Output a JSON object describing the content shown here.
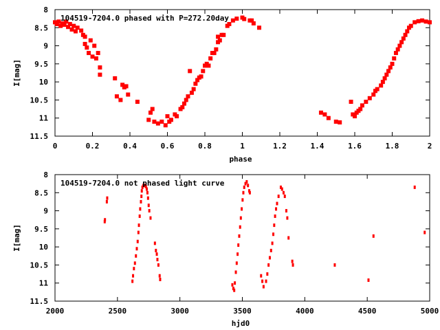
{
  "colors": {
    "points": "#ff0000",
    "axes": "#000000"
  },
  "chart_data": [
    {
      "type": "scatter",
      "title": "104519-7204.0 phased with P=272.20day",
      "xlabel": "phase",
      "ylabel": "I[mag]",
      "xlim": [
        0,
        2
      ],
      "ylim": [
        11.5,
        8
      ],
      "y_inverted": true,
      "xticks": [
        "0",
        "0.2",
        "0.4",
        "0.6",
        "0.8",
        "1",
        "1.2",
        "1.4",
        "1.6",
        "1.8",
        "2"
      ],
      "yticks": [
        "8",
        "8.5",
        "9",
        "9.5",
        "10",
        "10.5",
        "11",
        "11.5"
      ],
      "points": [
        [
          0.0,
          8.35
        ],
        [
          0.01,
          8.4
        ],
        [
          0.02,
          8.33
        ],
        [
          0.03,
          8.45
        ],
        [
          0.04,
          8.38
        ],
        [
          0.05,
          8.42
        ],
        [
          0.06,
          8.33
        ],
        [
          0.07,
          8.48
        ],
        [
          0.08,
          8.4
        ],
        [
          0.09,
          8.55
        ],
        [
          0.1,
          8.45
        ],
        [
          0.11,
          8.6
        ],
        [
          0.12,
          8.5
        ],
        [
          0.14,
          8.58
        ],
        [
          0.15,
          8.7
        ],
        [
          0.16,
          8.75
        ],
        [
          0.16,
          8.95
        ],
        [
          0.17,
          9.05
        ],
        [
          0.18,
          9.2
        ],
        [
          0.19,
          8.85
        ],
        [
          0.2,
          9.3
        ],
        [
          0.21,
          9.0
        ],
        [
          0.22,
          9.35
        ],
        [
          0.23,
          9.2
        ],
        [
          0.24,
          9.6
        ],
        [
          0.24,
          9.8
        ],
        [
          0.32,
          9.9
        ],
        [
          0.33,
          10.4
        ],
        [
          0.35,
          10.5
        ],
        [
          0.36,
          10.08
        ],
        [
          0.37,
          10.15
        ],
        [
          0.38,
          10.12
        ],
        [
          0.39,
          10.35
        ],
        [
          0.44,
          10.55
        ],
        [
          0.5,
          11.05
        ],
        [
          0.51,
          10.85
        ],
        [
          0.52,
          10.75
        ],
        [
          0.53,
          11.1
        ],
        [
          0.55,
          11.15
        ],
        [
          0.57,
          11.1
        ],
        [
          0.59,
          11.2
        ],
        [
          0.6,
          10.95
        ],
        [
          0.61,
          11.1
        ],
        [
          0.62,
          11.05
        ],
        [
          0.64,
          10.9
        ],
        [
          0.65,
          10.95
        ],
        [
          0.67,
          10.75
        ],
        [
          0.68,
          10.7
        ],
        [
          0.69,
          10.6
        ],
        [
          0.7,
          10.5
        ],
        [
          0.71,
          10.4
        ],
        [
          0.72,
          9.7
        ],
        [
          0.73,
          10.3
        ],
        [
          0.74,
          10.2
        ],
        [
          0.75,
          10.05
        ],
        [
          0.76,
          9.95
        ],
        [
          0.77,
          9.88
        ],
        [
          0.78,
          9.85
        ],
        [
          0.79,
          9.7
        ],
        [
          0.8,
          9.55
        ],
        [
          0.81,
          9.5
        ],
        [
          0.82,
          9.55
        ],
        [
          0.83,
          9.35
        ],
        [
          0.84,
          9.2
        ],
        [
          0.85,
          9.2
        ],
        [
          0.86,
          9.1
        ],
        [
          0.87,
          8.9
        ],
        [
          0.87,
          8.75
        ],
        [
          0.88,
          8.85
        ],
        [
          0.89,
          8.7
        ],
        [
          0.9,
          8.7
        ],
        [
          0.92,
          8.45
        ],
        [
          0.93,
          8.4
        ],
        [
          0.95,
          8.3
        ],
        [
          0.97,
          8.25
        ],
        [
          1.0,
          8.22
        ],
        [
          1.01,
          8.26
        ],
        [
          1.04,
          8.3
        ],
        [
          1.05,
          8.3
        ],
        [
          1.06,
          8.38
        ],
        [
          1.09,
          8.5
        ],
        [
          1.42,
          10.85
        ],
        [
          1.44,
          10.9
        ],
        [
          1.46,
          11.0
        ],
        [
          1.5,
          11.1
        ],
        [
          1.52,
          11.12
        ],
        [
          1.58,
          10.55
        ],
        [
          1.59,
          10.9
        ],
        [
          1.6,
          10.95
        ],
        [
          1.61,
          10.85
        ],
        [
          1.62,
          10.8
        ],
        [
          1.63,
          10.75
        ],
        [
          1.64,
          10.65
        ],
        [
          1.66,
          10.55
        ],
        [
          1.68,
          10.45
        ],
        [
          1.7,
          10.35
        ],
        [
          1.71,
          10.25
        ],
        [
          1.72,
          10.2
        ],
        [
          1.74,
          10.1
        ],
        [
          1.75,
          10.0
        ],
        [
          1.76,
          9.9
        ],
        [
          1.77,
          9.8
        ],
        [
          1.78,
          9.7
        ],
        [
          1.79,
          9.6
        ],
        [
          1.8,
          9.5
        ],
        [
          1.81,
          9.35
        ],
        [
          1.82,
          9.2
        ],
        [
          1.83,
          9.1
        ],
        [
          1.84,
          9.0
        ],
        [
          1.85,
          8.9
        ],
        [
          1.86,
          8.8
        ],
        [
          1.87,
          8.7
        ],
        [
          1.88,
          8.6
        ],
        [
          1.89,
          8.5
        ],
        [
          1.9,
          8.45
        ],
        [
          1.92,
          8.35
        ],
        [
          1.94,
          8.32
        ],
        [
          1.96,
          8.3
        ],
        [
          1.98,
          8.33
        ],
        [
          2.0,
          8.35
        ]
      ]
    },
    {
      "type": "scatter",
      "title": "104519-7204.0 not phased light curve",
      "xlabel": "hjd0",
      "ylabel": "I[mag]",
      "xlim": [
        2000,
        5000
      ],
      "ylim": [
        11.5,
        8
      ],
      "y_inverted": true,
      "xticks": [
        "2000",
        "2500",
        "3000",
        "3500",
        "4000",
        "4500",
        "5000"
      ],
      "yticks": [
        "8",
        "8.5",
        "9",
        "9.5",
        "10",
        "10.5",
        "11",
        "11.5"
      ],
      "points": [
        [
          2398,
          9.3
        ],
        [
          2400,
          9.25
        ],
        [
          2415,
          8.75
        ],
        [
          2418,
          8.65
        ],
        [
          2620,
          10.95
        ],
        [
          2625,
          10.8
        ],
        [
          2632,
          10.6
        ],
        [
          2640,
          10.45
        ],
        [
          2648,
          10.25
        ],
        [
          2655,
          10.05
        ],
        [
          2662,
          9.85
        ],
        [
          2668,
          9.6
        ],
        [
          2672,
          9.4
        ],
        [
          2678,
          9.15
        ],
        [
          2682,
          8.95
        ],
        [
          2688,
          8.75
        ],
        [
          2692,
          8.6
        ],
        [
          2695,
          8.45
        ],
        [
          2700,
          8.35
        ],
        [
          2708,
          8.3
        ],
        [
          2718,
          8.3
        ],
        [
          2728,
          8.33
        ],
        [
          2735,
          8.4
        ],
        [
          2740,
          8.5
        ],
        [
          2745,
          8.65
        ],
        [
          2750,
          8.85
        ],
        [
          2755,
          9.0
        ],
        [
          2765,
          9.2
        ],
        [
          2800,
          9.9
        ],
        [
          2808,
          10.1
        ],
        [
          2815,
          10.2
        ],
        [
          2820,
          10.35
        ],
        [
          2828,
          10.5
        ],
        [
          2838,
          10.8
        ],
        [
          2842,
          10.9
        ],
        [
          3420,
          11.05
        ],
        [
          3428,
          11.15
        ],
        [
          3435,
          11.2
        ],
        [
          3440,
          11.0
        ],
        [
          3448,
          10.7
        ],
        [
          3455,
          10.45
        ],
        [
          3462,
          10.2
        ],
        [
          3468,
          9.95
        ],
        [
          3475,
          9.7
        ],
        [
          3482,
          9.45
        ],
        [
          3488,
          9.2
        ],
        [
          3495,
          8.95
        ],
        [
          3502,
          8.7
        ],
        [
          3508,
          8.5
        ],
        [
          3515,
          8.35
        ],
        [
          3525,
          8.25
        ],
        [
          3535,
          8.2
        ],
        [
          3545,
          8.3
        ],
        [
          3555,
          8.45
        ],
        [
          3560,
          8.5
        ],
        [
          3650,
          10.8
        ],
        [
          3660,
          10.95
        ],
        [
          3670,
          11.1
        ],
        [
          3690,
          10.95
        ],
        [
          3700,
          10.75
        ],
        [
          3710,
          10.5
        ],
        [
          3720,
          10.3
        ],
        [
          3730,
          10.1
        ],
        [
          3740,
          9.9
        ],
        [
          3748,
          9.65
        ],
        [
          3755,
          9.4
        ],
        [
          3762,
          9.15
        ],
        [
          3770,
          8.95
        ],
        [
          3778,
          8.8
        ],
        [
          3790,
          8.6
        ],
        [
          3808,
          8.35
        ],
        [
          3818,
          8.4
        ],
        [
          3830,
          8.5
        ],
        [
          3840,
          8.6
        ],
        [
          3852,
          9.0
        ],
        [
          3860,
          9.2
        ],
        [
          3870,
          9.75
        ],
        [
          3900,
          10.4
        ],
        [
          3905,
          10.5
        ],
        [
          4240,
          10.5
        ],
        [
          4510,
          10.92
        ],
        [
          4550,
          9.7
        ],
        [
          4880,
          8.35
        ],
        [
          4960,
          9.6
        ]
      ]
    }
  ]
}
